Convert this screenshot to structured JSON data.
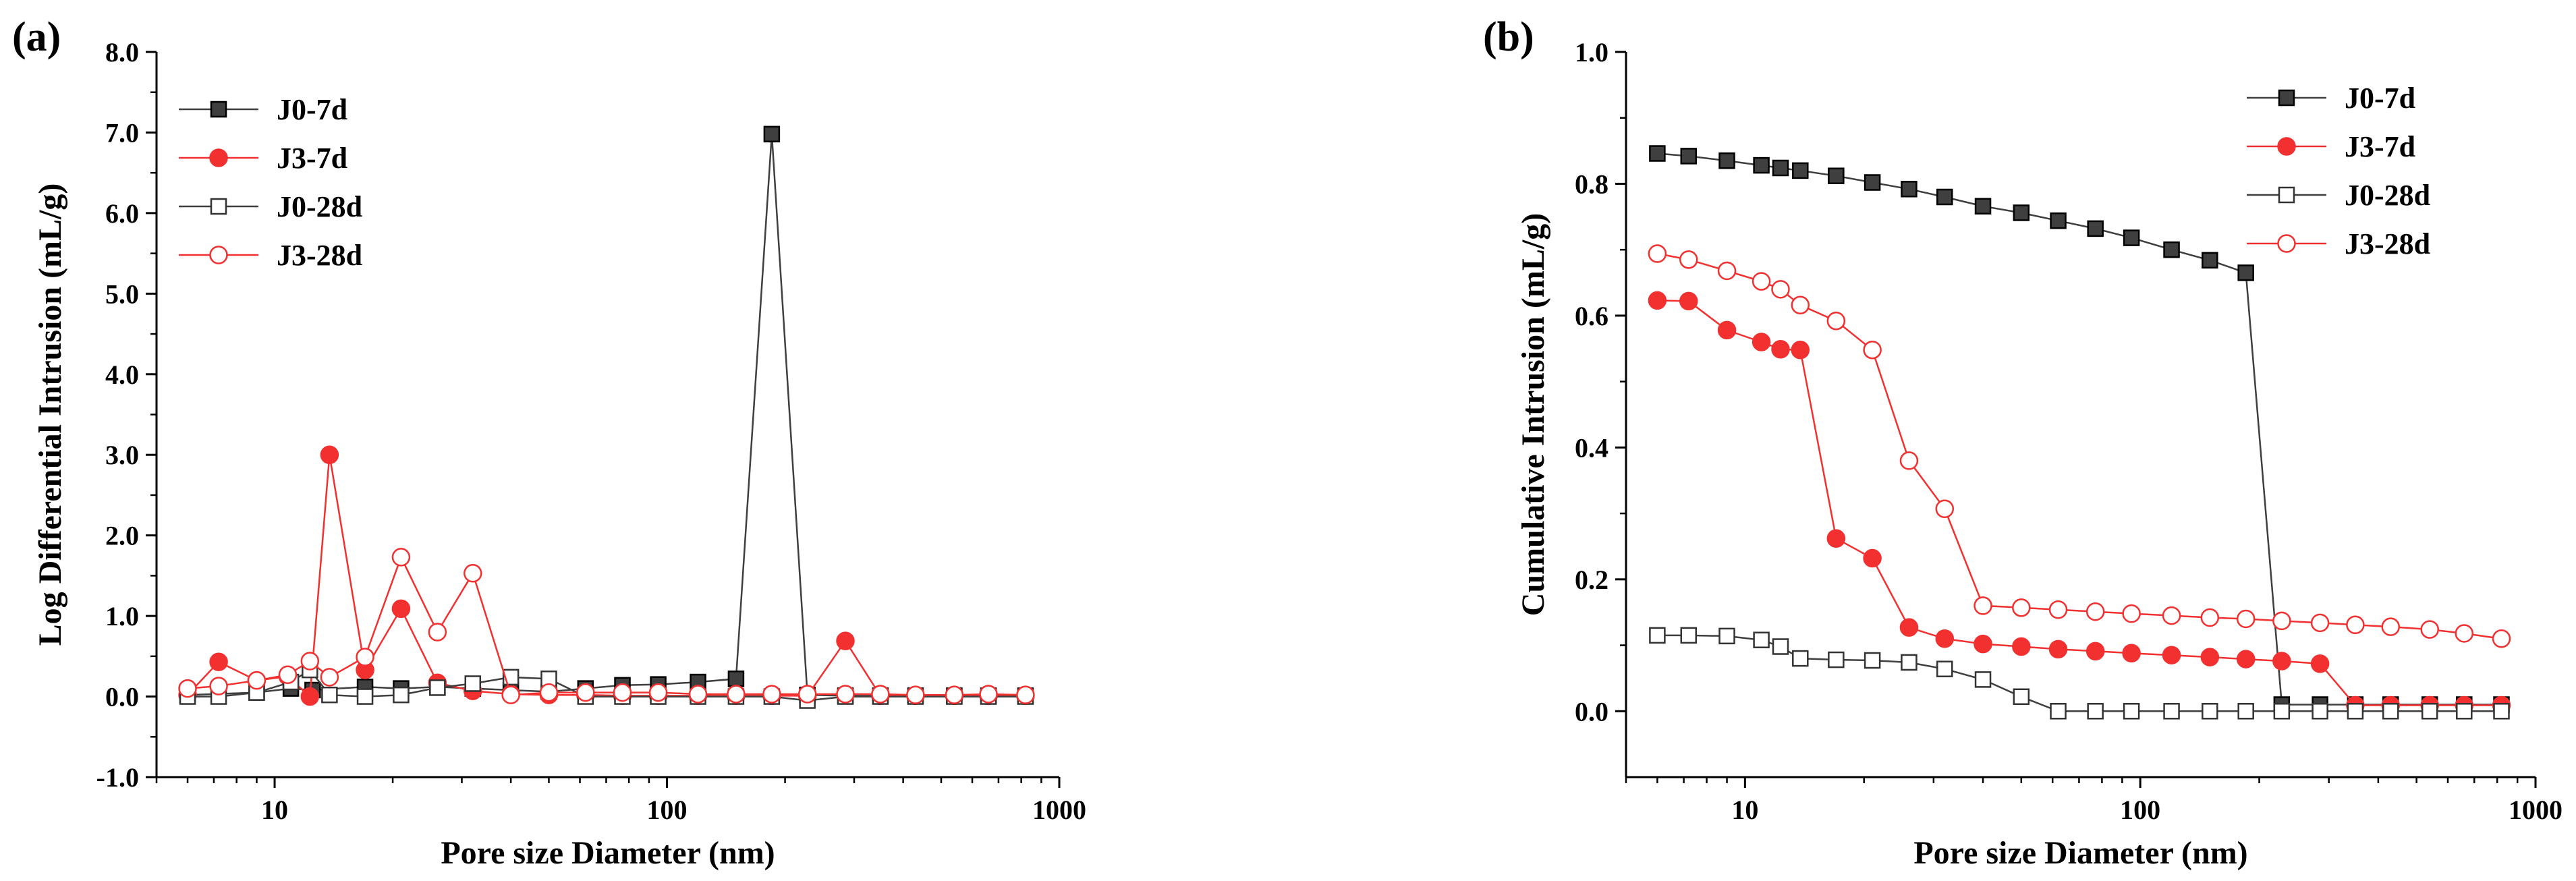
{
  "chart_data": [
    {
      "panel_label": "(a)",
      "type": "line",
      "xscale": "log",
      "xlabel": "Pore size Diameter (nm)",
      "ylabel": "Log Differential Intrusion (mL/g)",
      "xlim": [
        5,
        1000
      ],
      "ylim": [
        -1.0,
        8.0
      ],
      "xticks": [
        10,
        100,
        1000
      ],
      "xtick_labels": [
        "10",
        "100",
        "1000"
      ],
      "yticks": [
        -1,
        0,
        1,
        2,
        3,
        4,
        5,
        6,
        7,
        8
      ],
      "ytick_labels": [
        "-1.0",
        "0.0",
        "1.0",
        "2.0",
        "3.0",
        "4.0",
        "5.0",
        "6.0",
        "7.0",
        "8.0"
      ],
      "legend_position": "top-left",
      "series": [
        {
          "name": "J0-7d",
          "color": "#3f3f3f",
          "marker": "square-filled",
          "x": [
            6,
            9,
            11,
            12.5,
            17,
            21,
            26,
            32,
            40,
            50,
            62,
            77,
            95,
            120,
            150,
            185,
            228,
            285,
            350,
            430,
            540,
            660,
            820
          ],
          "y": [
            0.02,
            0.05,
            0.1,
            0.08,
            0.12,
            0.1,
            0.12,
            0.1,
            0.08,
            0.06,
            0.1,
            0.14,
            0.15,
            0.18,
            0.22,
            6.98,
            0.02,
            0.01,
            0.01,
            0.01,
            0.01,
            0.01,
            0.01
          ]
        },
        {
          "name": "J3-7d",
          "color": "#f23030",
          "marker": "circle-filled",
          "x": [
            6,
            7.2,
            9,
            10.8,
            12.3,
            13.8,
            17,
            21,
            26,
            32,
            40,
            50,
            62,
            77,
            95,
            120,
            150,
            185,
            228,
            285,
            350,
            430,
            540,
            660,
            820
          ],
          "y": [
            0.02,
            0.43,
            0.2,
            0.25,
            0.0,
            3.0,
            0.33,
            1.09,
            0.17,
            0.07,
            0.03,
            0.02,
            0.02,
            0.01,
            0.01,
            0.01,
            0.01,
            0.01,
            0.01,
            0.69,
            0.01,
            0.01,
            0.01,
            0.01,
            0.01
          ]
        },
        {
          "name": "J0-28d",
          "color": "#3f3f3f",
          "marker": "square-open",
          "x": [
            6,
            7.2,
            9,
            11,
            12.3,
            13.8,
            17,
            21,
            26,
            32,
            40,
            50,
            62,
            77,
            95,
            120,
            150,
            185,
            228,
            285,
            350,
            430,
            540,
            660,
            820
          ],
          "y": [
            0.0,
            0.0,
            0.05,
            0.18,
            0.33,
            0.02,
            0.0,
            0.02,
            0.11,
            0.16,
            0.24,
            0.22,
            0.0,
            0.0,
            0.0,
            0.0,
            0.0,
            0.0,
            -0.05,
            0.0,
            0.0,
            0.0,
            0.0,
            0.0,
            0.0
          ]
        },
        {
          "name": "J3-28d",
          "color": "#f23030",
          "marker": "circle-open",
          "x": [
            6,
            7.2,
            9,
            10.8,
            12.3,
            13.8,
            17,
            21,
            26,
            32,
            40,
            50,
            62,
            77,
            95,
            120,
            150,
            185,
            228,
            285,
            350,
            430,
            540,
            660,
            820
          ],
          "y": [
            0.1,
            0.13,
            0.2,
            0.27,
            0.44,
            0.24,
            0.49,
            1.73,
            0.8,
            1.53,
            0.02,
            0.05,
            0.05,
            0.05,
            0.05,
            0.03,
            0.03,
            0.03,
            0.03,
            0.03,
            0.03,
            0.02,
            0.02,
            0.03,
            0.02
          ]
        }
      ]
    },
    {
      "panel_label": "(b)",
      "type": "line",
      "xscale": "log",
      "xlabel": "Pore size Diameter (nm)",
      "ylabel": "Cumulative Intrusion (mL/g)",
      "xlim": [
        5,
        1000
      ],
      "ylim": [
        -0.1,
        1.0
      ],
      "xticks": [
        10,
        100,
        1000
      ],
      "xtick_labels": [
        "10",
        "100",
        "1000"
      ],
      "yticks": [
        0,
        0.2,
        0.4,
        0.6,
        0.8,
        1.0
      ],
      "ytick_labels": [
        "0.0",
        "0.2",
        "0.4",
        "0.6",
        "0.8",
        "1.0"
      ],
      "legend_position": "top-right",
      "series": [
        {
          "name": "J0-7d",
          "color": "#3f3f3f",
          "marker": "square-filled",
          "x": [
            6,
            7.2,
            9,
            11,
            12.3,
            13.8,
            17,
            21,
            26,
            32,
            40,
            50,
            62,
            77,
            95,
            120,
            150,
            185,
            228,
            285,
            350,
            430,
            540,
            660,
            820
          ],
          "y": [
            0.846,
            0.842,
            0.835,
            0.828,
            0.824,
            0.82,
            0.812,
            0.802,
            0.792,
            0.78,
            0.766,
            0.756,
            0.744,
            0.732,
            0.718,
            0.7,
            0.684,
            0.665,
            0.01,
            0.01,
            0.01,
            0.01,
            0.01,
            0.01,
            0.01
          ]
        },
        {
          "name": "J3-7d",
          "color": "#f23030",
          "marker": "circle-filled",
          "x": [
            6,
            7.2,
            9,
            11,
            12.3,
            13.8,
            17,
            21,
            26,
            32,
            40,
            50,
            62,
            77,
            95,
            120,
            150,
            185,
            228,
            285,
            350,
            430,
            540,
            660,
            820
          ],
          "y": [
            0.623,
            0.622,
            0.578,
            0.56,
            0.549,
            0.548,
            0.262,
            0.232,
            0.127,
            0.11,
            0.102,
            0.098,
            0.094,
            0.091,
            0.088,
            0.085,
            0.082,
            0.079,
            0.076,
            0.072,
            0.009,
            0.009,
            0.009,
            0.009,
            0.009
          ]
        },
        {
          "name": "J0-28d",
          "color": "#3f3f3f",
          "marker": "square-open",
          "x": [
            6,
            7.2,
            9,
            11,
            12.3,
            13.8,
            17,
            21,
            26,
            32,
            40,
            50,
            62,
            77,
            95,
            120,
            150,
            185,
            228,
            285,
            350,
            430,
            540,
            660,
            820
          ],
          "y": [
            0.115,
            0.115,
            0.114,
            0.108,
            0.098,
            0.08,
            0.078,
            0.077,
            0.074,
            0.064,
            0.048,
            0.022,
            0.0,
            0.0,
            0.0,
            0.0,
            0.0,
            0.0,
            0.0,
            0.0,
            0.0,
            0.0,
            0.0,
            0.0,
            0.0
          ]
        },
        {
          "name": "J3-28d",
          "color": "#f23030",
          "marker": "circle-open",
          "x": [
            6,
            7.2,
            9,
            11,
            12.3,
            13.8,
            17,
            21,
            26,
            32,
            40,
            50,
            62,
            77,
            95,
            120,
            150,
            185,
            228,
            285,
            350,
            430,
            540,
            660,
            820
          ],
          "y": [
            0.694,
            0.685,
            0.668,
            0.652,
            0.64,
            0.616,
            0.592,
            0.548,
            0.38,
            0.307,
            0.16,
            0.157,
            0.154,
            0.151,
            0.148,
            0.145,
            0.142,
            0.14,
            0.137,
            0.134,
            0.131,
            0.128,
            0.124,
            0.118,
            0.11
          ]
        }
      ]
    }
  ]
}
